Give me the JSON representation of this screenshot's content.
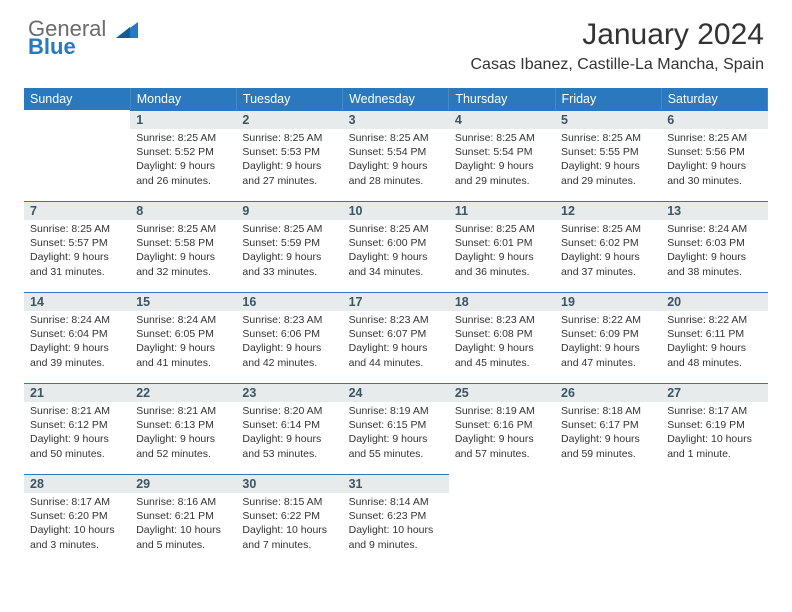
{
  "logo": {
    "text_gray": "General",
    "text_blue": "Blue"
  },
  "title": {
    "month": "January 2024",
    "location": "Casas Ibanez, Castille-La Mancha, Spain"
  },
  "colors": {
    "header_bg": "#2a78be",
    "daynum_bg": "#e8ebec",
    "daynum_border": "#2a78be",
    "text": "#333333"
  },
  "day_headers": [
    "Sunday",
    "Monday",
    "Tuesday",
    "Wednesday",
    "Thursday",
    "Friday",
    "Saturday"
  ],
  "weeks": [
    [
      null,
      {
        "n": "1",
        "sr": "Sunrise: 8:25 AM",
        "ss": "Sunset: 5:52 PM",
        "d1": "Daylight: 9 hours",
        "d2": "and 26 minutes."
      },
      {
        "n": "2",
        "sr": "Sunrise: 8:25 AM",
        "ss": "Sunset: 5:53 PM",
        "d1": "Daylight: 9 hours",
        "d2": "and 27 minutes."
      },
      {
        "n": "3",
        "sr": "Sunrise: 8:25 AM",
        "ss": "Sunset: 5:54 PM",
        "d1": "Daylight: 9 hours",
        "d2": "and 28 minutes."
      },
      {
        "n": "4",
        "sr": "Sunrise: 8:25 AM",
        "ss": "Sunset: 5:54 PM",
        "d1": "Daylight: 9 hours",
        "d2": "and 29 minutes."
      },
      {
        "n": "5",
        "sr": "Sunrise: 8:25 AM",
        "ss": "Sunset: 5:55 PM",
        "d1": "Daylight: 9 hours",
        "d2": "and 29 minutes."
      },
      {
        "n": "6",
        "sr": "Sunrise: 8:25 AM",
        "ss": "Sunset: 5:56 PM",
        "d1": "Daylight: 9 hours",
        "d2": "and 30 minutes."
      }
    ],
    [
      {
        "n": "7",
        "sr": "Sunrise: 8:25 AM",
        "ss": "Sunset: 5:57 PM",
        "d1": "Daylight: 9 hours",
        "d2": "and 31 minutes."
      },
      {
        "n": "8",
        "sr": "Sunrise: 8:25 AM",
        "ss": "Sunset: 5:58 PM",
        "d1": "Daylight: 9 hours",
        "d2": "and 32 minutes."
      },
      {
        "n": "9",
        "sr": "Sunrise: 8:25 AM",
        "ss": "Sunset: 5:59 PM",
        "d1": "Daylight: 9 hours",
        "d2": "and 33 minutes."
      },
      {
        "n": "10",
        "sr": "Sunrise: 8:25 AM",
        "ss": "Sunset: 6:00 PM",
        "d1": "Daylight: 9 hours",
        "d2": "and 34 minutes."
      },
      {
        "n": "11",
        "sr": "Sunrise: 8:25 AM",
        "ss": "Sunset: 6:01 PM",
        "d1": "Daylight: 9 hours",
        "d2": "and 36 minutes."
      },
      {
        "n": "12",
        "sr": "Sunrise: 8:25 AM",
        "ss": "Sunset: 6:02 PM",
        "d1": "Daylight: 9 hours",
        "d2": "and 37 minutes."
      },
      {
        "n": "13",
        "sr": "Sunrise: 8:24 AM",
        "ss": "Sunset: 6:03 PM",
        "d1": "Daylight: 9 hours",
        "d2": "and 38 minutes."
      }
    ],
    [
      {
        "n": "14",
        "sr": "Sunrise: 8:24 AM",
        "ss": "Sunset: 6:04 PM",
        "d1": "Daylight: 9 hours",
        "d2": "and 39 minutes."
      },
      {
        "n": "15",
        "sr": "Sunrise: 8:24 AM",
        "ss": "Sunset: 6:05 PM",
        "d1": "Daylight: 9 hours",
        "d2": "and 41 minutes."
      },
      {
        "n": "16",
        "sr": "Sunrise: 8:23 AM",
        "ss": "Sunset: 6:06 PM",
        "d1": "Daylight: 9 hours",
        "d2": "and 42 minutes."
      },
      {
        "n": "17",
        "sr": "Sunrise: 8:23 AM",
        "ss": "Sunset: 6:07 PM",
        "d1": "Daylight: 9 hours",
        "d2": "and 44 minutes."
      },
      {
        "n": "18",
        "sr": "Sunrise: 8:23 AM",
        "ss": "Sunset: 6:08 PM",
        "d1": "Daylight: 9 hours",
        "d2": "and 45 minutes."
      },
      {
        "n": "19",
        "sr": "Sunrise: 8:22 AM",
        "ss": "Sunset: 6:09 PM",
        "d1": "Daylight: 9 hours",
        "d2": "and 47 minutes."
      },
      {
        "n": "20",
        "sr": "Sunrise: 8:22 AM",
        "ss": "Sunset: 6:11 PM",
        "d1": "Daylight: 9 hours",
        "d2": "and 48 minutes."
      }
    ],
    [
      {
        "n": "21",
        "sr": "Sunrise: 8:21 AM",
        "ss": "Sunset: 6:12 PM",
        "d1": "Daylight: 9 hours",
        "d2": "and 50 minutes."
      },
      {
        "n": "22",
        "sr": "Sunrise: 8:21 AM",
        "ss": "Sunset: 6:13 PM",
        "d1": "Daylight: 9 hours",
        "d2": "and 52 minutes."
      },
      {
        "n": "23",
        "sr": "Sunrise: 8:20 AM",
        "ss": "Sunset: 6:14 PM",
        "d1": "Daylight: 9 hours",
        "d2": "and 53 minutes."
      },
      {
        "n": "24",
        "sr": "Sunrise: 8:19 AM",
        "ss": "Sunset: 6:15 PM",
        "d1": "Daylight: 9 hours",
        "d2": "and 55 minutes."
      },
      {
        "n": "25",
        "sr": "Sunrise: 8:19 AM",
        "ss": "Sunset: 6:16 PM",
        "d1": "Daylight: 9 hours",
        "d2": "and 57 minutes."
      },
      {
        "n": "26",
        "sr": "Sunrise: 8:18 AM",
        "ss": "Sunset: 6:17 PM",
        "d1": "Daylight: 9 hours",
        "d2": "and 59 minutes."
      },
      {
        "n": "27",
        "sr": "Sunrise: 8:17 AM",
        "ss": "Sunset: 6:19 PM",
        "d1": "Daylight: 10 hours",
        "d2": "and 1 minute."
      }
    ],
    [
      {
        "n": "28",
        "sr": "Sunrise: 8:17 AM",
        "ss": "Sunset: 6:20 PM",
        "d1": "Daylight: 10 hours",
        "d2": "and 3 minutes."
      },
      {
        "n": "29",
        "sr": "Sunrise: 8:16 AM",
        "ss": "Sunset: 6:21 PM",
        "d1": "Daylight: 10 hours",
        "d2": "and 5 minutes."
      },
      {
        "n": "30",
        "sr": "Sunrise: 8:15 AM",
        "ss": "Sunset: 6:22 PM",
        "d1": "Daylight: 10 hours",
        "d2": "and 7 minutes."
      },
      {
        "n": "31",
        "sr": "Sunrise: 8:14 AM",
        "ss": "Sunset: 6:23 PM",
        "d1": "Daylight: 10 hours",
        "d2": "and 9 minutes."
      },
      null,
      null,
      null
    ]
  ]
}
